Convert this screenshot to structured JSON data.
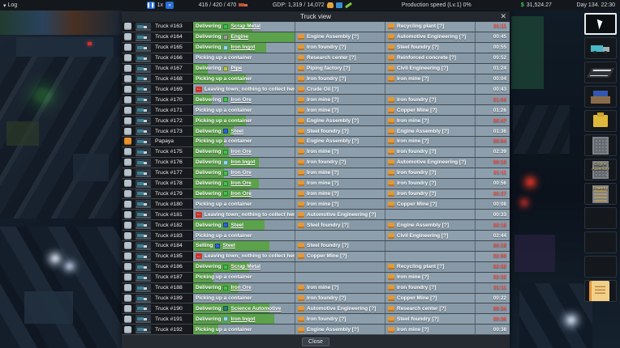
{
  "top_bar": {
    "log_label": "Log",
    "log_arrow": "▾",
    "speed_value": "1x",
    "pause_glyph": "❚❚",
    "ff_glyph": "»",
    "trucks_stat": "416 / 420 / 470",
    "gdp_stat": "GDP: 1,319 / 14,072",
    "production_speed": "Production speed (Lv.1) 0%",
    "money_symbol": "$",
    "money_value": "31,524.27",
    "clock": "Day 134. 22:30"
  },
  "modal": {
    "title": "Truck view",
    "close_x": "✕",
    "close_label": "Close"
  },
  "status_labels": {
    "delivering": "Delivering",
    "selling": "Selling",
    "picking": "Picking up a container",
    "leaving": "Leaving town; nothing to collect here",
    "leave_icon_glyph": "←"
  },
  "colors": {
    "progress_green": "#5ba24b",
    "alert_red": "#ff463a",
    "papaya_checkbox": "#e8922e",
    "default_checkbox": "#b5c3cd"
  },
  "rows": [
    {
      "name": "Truck #163",
      "status": "delivering",
      "product": "Scrap Metal",
      "product_color": "#3fbf4e",
      "progress": 58,
      "source": "",
      "dest": "Recycling plant [?]",
      "time": "01:11",
      "alert": true
    },
    {
      "name": "Truck #164",
      "status": "delivering",
      "product": "Engine",
      "product_color": "#9aa096",
      "progress": 100,
      "source": "Engine Assembly [?]",
      "dest": "Automotive Engineering [?]",
      "time": "00:45",
      "alert": false
    },
    {
      "name": "Truck #165",
      "status": "delivering",
      "product": "Iron Ingot",
      "product_color": "#8fd8e8",
      "progress": 72,
      "source": "Iron foundry [?]",
      "dest": "Steel foundry [?]",
      "time": "00:55",
      "alert": false
    },
    {
      "name": "Truck #166",
      "status": "picking",
      "product": "",
      "progress": 0,
      "source": "Research center [?]",
      "dest": "Reinforced concrete [?]",
      "time": "00:52",
      "alert": false
    },
    {
      "name": "Truck #167",
      "status": "delivering",
      "product": "Pipe",
      "product_color": "#b9c84b",
      "progress": 14,
      "source": "Piping factory [?]",
      "dest": "Civil Engineering [?]",
      "time": "01:24",
      "alert": false
    },
    {
      "name": "Truck #168",
      "status": "picking",
      "product": "",
      "progress": 52,
      "source": "Iron foundry [?]",
      "dest": "Iron mine [?]",
      "time": "00:04",
      "alert": false
    },
    {
      "name": "Truck #169",
      "status": "leaving",
      "product": "",
      "progress": 0,
      "source": "Crude Oil [?]",
      "dest": "",
      "time": "00:43",
      "alert": false
    },
    {
      "name": "Truck #170",
      "status": "delivering",
      "product": "Iron Ore",
      "product_color": "#43c24f",
      "progress": 18,
      "source": "Iron mine [?]",
      "dest": "Iron foundry [?]",
      "time": "01:04",
      "alert": true
    },
    {
      "name": "Truck #171",
      "status": "picking",
      "product": "",
      "progress": 0,
      "source": "Iron mine [?]",
      "dest": "Copper Mine [?]",
      "time": "01:26",
      "alert": false
    },
    {
      "name": "Truck #172",
      "status": "picking",
      "product": "",
      "progress": 52,
      "source": "Engine Assembly [?]",
      "dest": "Iron mine [?]",
      "time": "00:47",
      "alert": true
    },
    {
      "name": "Truck #173",
      "status": "delivering",
      "product": "Steel",
      "product_color": "#2f62d8",
      "progress": 40,
      "source": "Steel foundry [?]",
      "dest": "Engine Assembly [?]",
      "time": "01:36",
      "alert": false
    },
    {
      "name": "Papaya",
      "status": "picking",
      "product": "",
      "progress": 30,
      "source": "Engine Assembly [?]",
      "dest": "Iron mine [?]",
      "time": "00:04",
      "alert": true,
      "checkbox": "#e8922e"
    },
    {
      "name": "Truck #175",
      "status": "delivering",
      "product": "Iron Ore",
      "product_color": "#43c24f",
      "progress": 35,
      "source": "Iron mine [?]",
      "dest": "Iron foundry [?]",
      "time": "02:39",
      "alert": false
    },
    {
      "name": "Truck #176",
      "status": "delivering",
      "product": "Iron Ingot",
      "product_color": "#8fd8e8",
      "progress": 65,
      "source": "Iron foundry [?]",
      "dest": "Automotive Engineering [?]",
      "time": "00:10",
      "alert": true
    },
    {
      "name": "Truck #177",
      "status": "delivering",
      "product": "Iron Ore",
      "product_color": "#43c24f",
      "progress": 30,
      "source": "Iron mine [?]",
      "dest": "Iron foundry [?]",
      "time": "01:11",
      "alert": true
    },
    {
      "name": "Truck #178",
      "status": "delivering",
      "product": "Iron Ore",
      "product_color": "#43c24f",
      "progress": 65,
      "source": "Iron mine [?]",
      "dest": "Iron foundry [?]",
      "time": "00:56",
      "alert": false
    },
    {
      "name": "Truck #179",
      "status": "delivering",
      "product": "Iron Ore",
      "product_color": "#43c24f",
      "progress": 55,
      "source": "Iron mine [?]",
      "dest": "Iron foundry [?]",
      "time": "00:37",
      "alert": true
    },
    {
      "name": "Truck #180",
      "status": "picking",
      "product": "",
      "progress": 0,
      "source": "Iron mine [?]",
      "dest": "Copper Mine [?]",
      "time": "00:08",
      "alert": false
    },
    {
      "name": "Truck #181",
      "status": "leaving",
      "product": "",
      "progress": 0,
      "source": "Automotive Engineering [?]",
      "dest": "",
      "time": "00:33",
      "alert": false
    },
    {
      "name": "Truck #182",
      "status": "delivering",
      "product": "Steel",
      "product_color": "#2f62d8",
      "progress": 70,
      "source": "Steel foundry [?]",
      "dest": "Engine Assembly [?]",
      "time": "00:16",
      "alert": true
    },
    {
      "name": "Truck #183",
      "status": "picking",
      "product": "",
      "progress": 0,
      "source": "",
      "dest": "Civil Engineering [?]",
      "time": "02:44",
      "alert": false
    },
    {
      "name": "Truck #184",
      "status": "selling",
      "product": "Steel",
      "product_color": "#2f62d8",
      "progress": 75,
      "source": "Steel foundry [?]",
      "dest": "",
      "time": "00:19",
      "alert": true
    },
    {
      "name": "Truck #185",
      "status": "leaving",
      "product": "",
      "progress": 0,
      "source": "Copper Mine [?]",
      "dest": "",
      "time": "02:59",
      "alert": true
    },
    {
      "name": "Truck #186",
      "status": "delivering",
      "product": "Scrap Metal",
      "product_color": "#3fbf4e",
      "progress": 55,
      "source": "",
      "dest": "Recycling plant [?]",
      "time": "02:32",
      "alert": true
    },
    {
      "name": "Truck #187",
      "status": "picking",
      "product": "",
      "progress": 20,
      "source": "",
      "dest": "Iron mine [?]",
      "time": "02:32",
      "alert": true
    },
    {
      "name": "Truck #188",
      "status": "delivering",
      "product": "Iron Ore",
      "product_color": "#43c24f",
      "progress": 45,
      "source": "Iron mine [?]",
      "dest": "Iron foundry [?]",
      "time": "01:11",
      "alert": true
    },
    {
      "name": "Truck #189",
      "status": "picking",
      "product": "",
      "progress": 0,
      "source": "Iron foundry [?]",
      "dest": "Copper Mine [?]",
      "time": "00:22",
      "alert": false
    },
    {
      "name": "Truck #190",
      "status": "delivering",
      "product": "Science Automotive",
      "product_color": "#2e7d74",
      "progress": 75,
      "source": "Automotive Engineering [?]",
      "dest": "Research center [?]",
      "time": "00:34",
      "alert": true
    },
    {
      "name": "Truck #191",
      "status": "delivering",
      "product": "Iron Ingot",
      "product_color": "#8fd8e8",
      "progress": 80,
      "source": "Iron foundry [?]",
      "dest": "Steel foundry [?]",
      "time": "00:36",
      "alert": true
    },
    {
      "name": "Truck #192",
      "status": "picking",
      "product": "",
      "progress": 25,
      "source": "Engine Assembly [?]",
      "dest": "Iron mine [?]",
      "time": "00:38",
      "alert": false
    }
  ],
  "hotbar": {
    "slots": [
      {
        "icon": "pointer-tool",
        "selected": true
      },
      {
        "icon": "truck-tool"
      },
      {
        "icon": "road-tool"
      },
      {
        "icon": "factory-tool"
      },
      {
        "icon": "machine-tool"
      },
      {
        "icon": "building-tool"
      },
      {
        "icon": "engine-assembly-building",
        "label": "Engine Assembly"
      },
      {
        "icon": "foundry-building",
        "label": "Foundry"
      },
      {
        "icon": "empty"
      },
      {
        "icon": "empty"
      },
      {
        "icon": "empty"
      },
      {
        "icon": "quest-scroll"
      }
    ]
  }
}
